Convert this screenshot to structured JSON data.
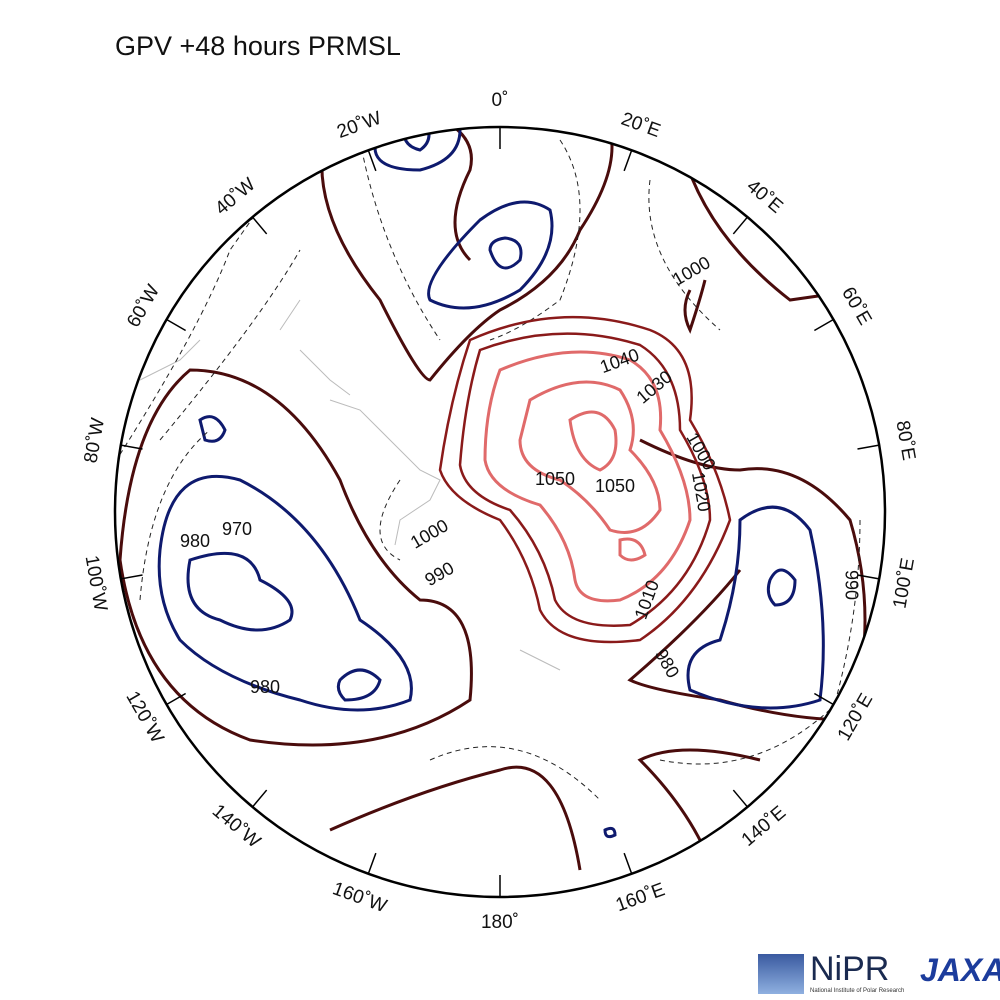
{
  "title": "GPV +48 hours PRMSL",
  "longitudes": [
    "0˚",
    "20˚E",
    "40˚E",
    "60˚E",
    "80˚E",
    "100˚E",
    "120˚E",
    "140˚E",
    "160˚E",
    "180˚",
    "160˚W",
    "140˚W",
    "120˚W",
    "100˚W",
    "80˚W",
    "60˚W",
    "40˚W",
    "20˚W"
  ],
  "contour_labels": [
    1040,
    1030,
    1000,
    1000,
    1020,
    1010,
    1050,
    1050,
    1000,
    990,
    980,
    970,
    980,
    980,
    990
  ],
  "logos": {
    "nipr": "NiPR",
    "nipr_full": "National Institute of Polar Research",
    "jaxa": "JAXA"
  }
}
